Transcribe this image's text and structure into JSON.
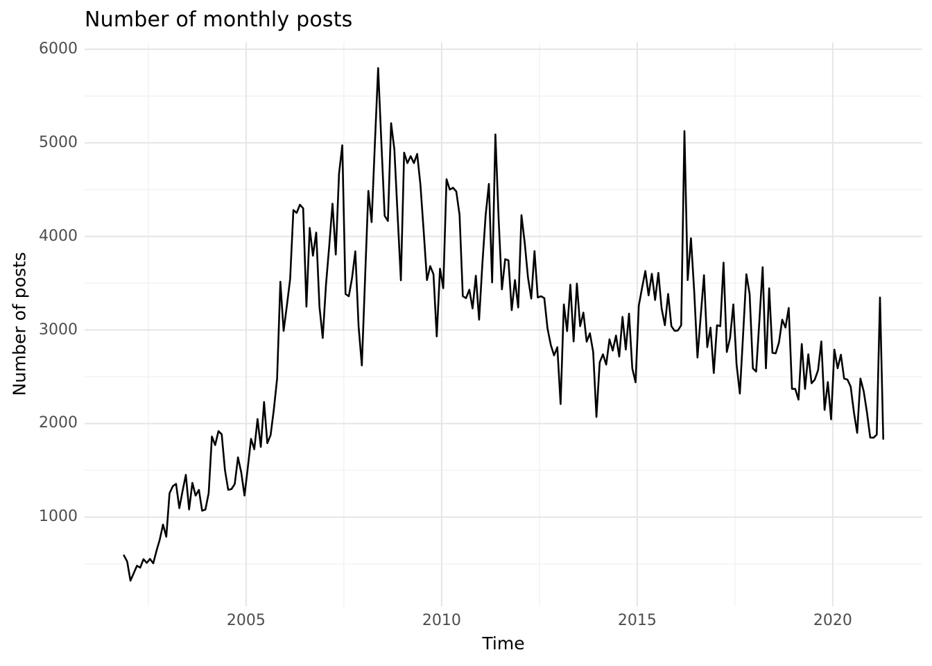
{
  "chart_data": {
    "type": "line",
    "title": "Number of monthly posts",
    "xlabel": "Time",
    "ylabel": "Number of posts",
    "legend": "none",
    "grid": "major+minor",
    "x_ticks": [
      2005,
      2010,
      2015,
      2020
    ],
    "x_minor_ticks": [
      2002.5,
      2007.5,
      2012.5,
      2017.5
    ],
    "y_ticks": [
      1000,
      2000,
      3000,
      4000,
      5000,
      6000
    ],
    "y_minor_ticks": [
      500,
      1500,
      2500,
      3500,
      4500,
      5500
    ],
    "x_range": [
      2000.87,
      2022.29
    ],
    "y_range": [
      46,
      6074
    ],
    "colors": {
      "line": "#000000",
      "grid_major": "#e5e5e5",
      "grid_minor": "#f0f0f0",
      "tick_label": "#4d4d4d",
      "text": "#000000",
      "background": "#ffffff"
    },
    "line_width": 2.6,
    "series": [
      {
        "name": "monthly posts",
        "frequency": "monthly",
        "start_year": 2001,
        "start_month": 11,
        "values": [
          590,
          525,
          320,
          400,
          480,
          460,
          550,
          510,
          553,
          506,
          640,
          760,
          920,
          790,
          1255,
          1330,
          1355,
          1095,
          1280,
          1452,
          1081,
          1366,
          1229,
          1291,
          1068,
          1080,
          1255,
          1861,
          1770,
          1918,
          1885,
          1502,
          1291,
          1299,
          1353,
          1638,
          1477,
          1230,
          1525,
          1836,
          1725,
          2047,
          1750,
          2230,
          1790,
          1875,
          2150,
          2480,
          3515,
          2990,
          3260,
          3545,
          4281,
          4251,
          4338,
          4300,
          3248,
          4090,
          3793,
          4041,
          3248,
          2914,
          3483,
          3900,
          4350,
          3805,
          4670,
          4974,
          3384,
          3360,
          3557,
          3840,
          3040,
          2620,
          3560,
          4486,
          4152,
          4990,
          5799,
          4995,
          4220,
          4165,
          5210,
          4930,
          4225,
          3530,
          4895,
          4783,
          4857,
          4783,
          4882,
          4550,
          4053,
          3533,
          3682,
          3595,
          2930,
          3655,
          3446,
          4611,
          4500,
          4520,
          4480,
          4230,
          3360,
          3340,
          3430,
          3230,
          3580,
          3110,
          3705,
          4225,
          4561,
          3508,
          5089,
          4180,
          3434,
          3756,
          3744,
          3211,
          3533,
          3240,
          4227,
          3930,
          3560,
          3335,
          3843,
          3347,
          3360,
          3340,
          3013,
          2840,
          2728,
          2815,
          2208,
          3273,
          2988,
          3484,
          2877,
          3495,
          3040,
          3185,
          2875,
          2965,
          2765,
          2070,
          2654,
          2740,
          2630,
          2900,
          2780,
          2940,
          2715,
          3140,
          2790,
          3175,
          2590,
          2440,
          3260,
          3450,
          3630,
          3370,
          3600,
          3320,
          3610,
          3230,
          3050,
          3385,
          3040,
          2990,
          2995,
          3050,
          5126,
          3533,
          3980,
          3410,
          2705,
          3150,
          3585,
          2815,
          3025,
          2540,
          3050,
          3040,
          3720,
          2765,
          2915,
          3273,
          2630,
          2320,
          2950,
          3595,
          3385,
          2590,
          2555,
          3100,
          3670,
          2590,
          3445,
          2755,
          2750,
          2865,
          3110,
          3025,
          3235,
          2370,
          2370,
          2255,
          2850,
          2370,
          2740,
          2430,
          2470,
          2570,
          2877,
          2145,
          2443,
          2045,
          2790,
          2590,
          2735,
          2480,
          2470,
          2395,
          2120,
          1900,
          2480,
          2345,
          2120,
          1850,
          1848,
          1880,
          3347,
          1836
        ]
      }
    ]
  }
}
